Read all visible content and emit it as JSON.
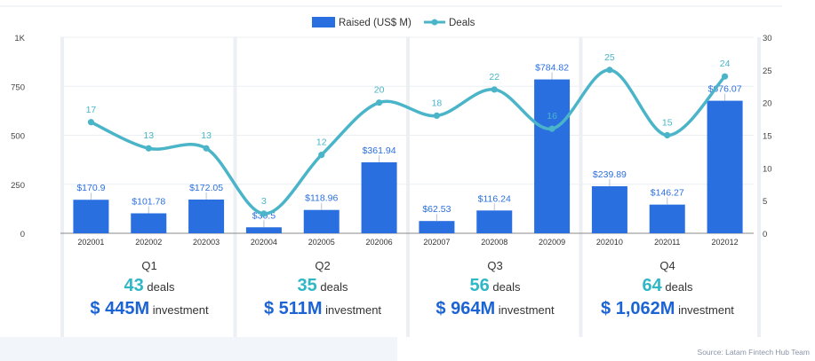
{
  "chart_data": {
    "type": "bar+line",
    "categories": [
      "202001",
      "202002",
      "202003",
      "202004",
      "202005",
      "202006",
      "202007",
      "202008",
      "202009",
      "202010",
      "202011",
      "202012"
    ],
    "series": [
      {
        "name": "Raised (US$ M)",
        "type": "bar",
        "axis": "left",
        "values": [
          170.9,
          101.78,
          172.05,
          30.5,
          118.96,
          361.94,
          62.53,
          116.24,
          784.82,
          239.89,
          146.27,
          676.07
        ],
        "labels": [
          "$170.9",
          "$101.78",
          "$172.05",
          "$30.5",
          "$118.96",
          "$361.94",
          "$62.53",
          "$116.24",
          "$784.82",
          "$239.89",
          "$146.27",
          "$676.07"
        ]
      },
      {
        "name": "Deals",
        "type": "line",
        "axis": "right",
        "values": [
          17,
          13,
          13,
          3,
          12,
          20,
          18,
          22,
          16,
          25,
          15,
          24
        ]
      }
    ],
    "y_left": {
      "ticks": [
        0,
        250,
        500,
        750,
        1000
      ],
      "tick_labels": [
        "0",
        "250",
        "500",
        "750",
        "1K"
      ],
      "range": [
        0,
        1000
      ]
    },
    "y_right": {
      "ticks": [
        0,
        5,
        10,
        15,
        20,
        25,
        30
      ],
      "range": [
        0,
        30
      ]
    },
    "grid": true,
    "legend_position": "top-center"
  },
  "colors": {
    "bar": "#2a6fe0",
    "line": "#4ab4c8",
    "deals_num": "#2fb7c6",
    "invest_num": "#1c63d4",
    "quarter_band": "#eceff3"
  },
  "quarters": [
    {
      "label": "Q1",
      "deals": "43",
      "deals_word": "deals",
      "investment": "$ 445M",
      "investment_word": "investment"
    },
    {
      "label": "Q2",
      "deals": "35",
      "deals_word": "deals",
      "investment": "$ 511M",
      "investment_word": "investment"
    },
    {
      "label": "Q3",
      "deals": "56",
      "deals_word": "deals",
      "investment": "$ 964M",
      "investment_word": "investment"
    },
    {
      "label": "Q4",
      "deals": "64",
      "deals_word": "deals",
      "investment": "$ 1,062M",
      "investment_word": "investment"
    }
  ],
  "source": "Source: Latam Fintech Hub Team"
}
